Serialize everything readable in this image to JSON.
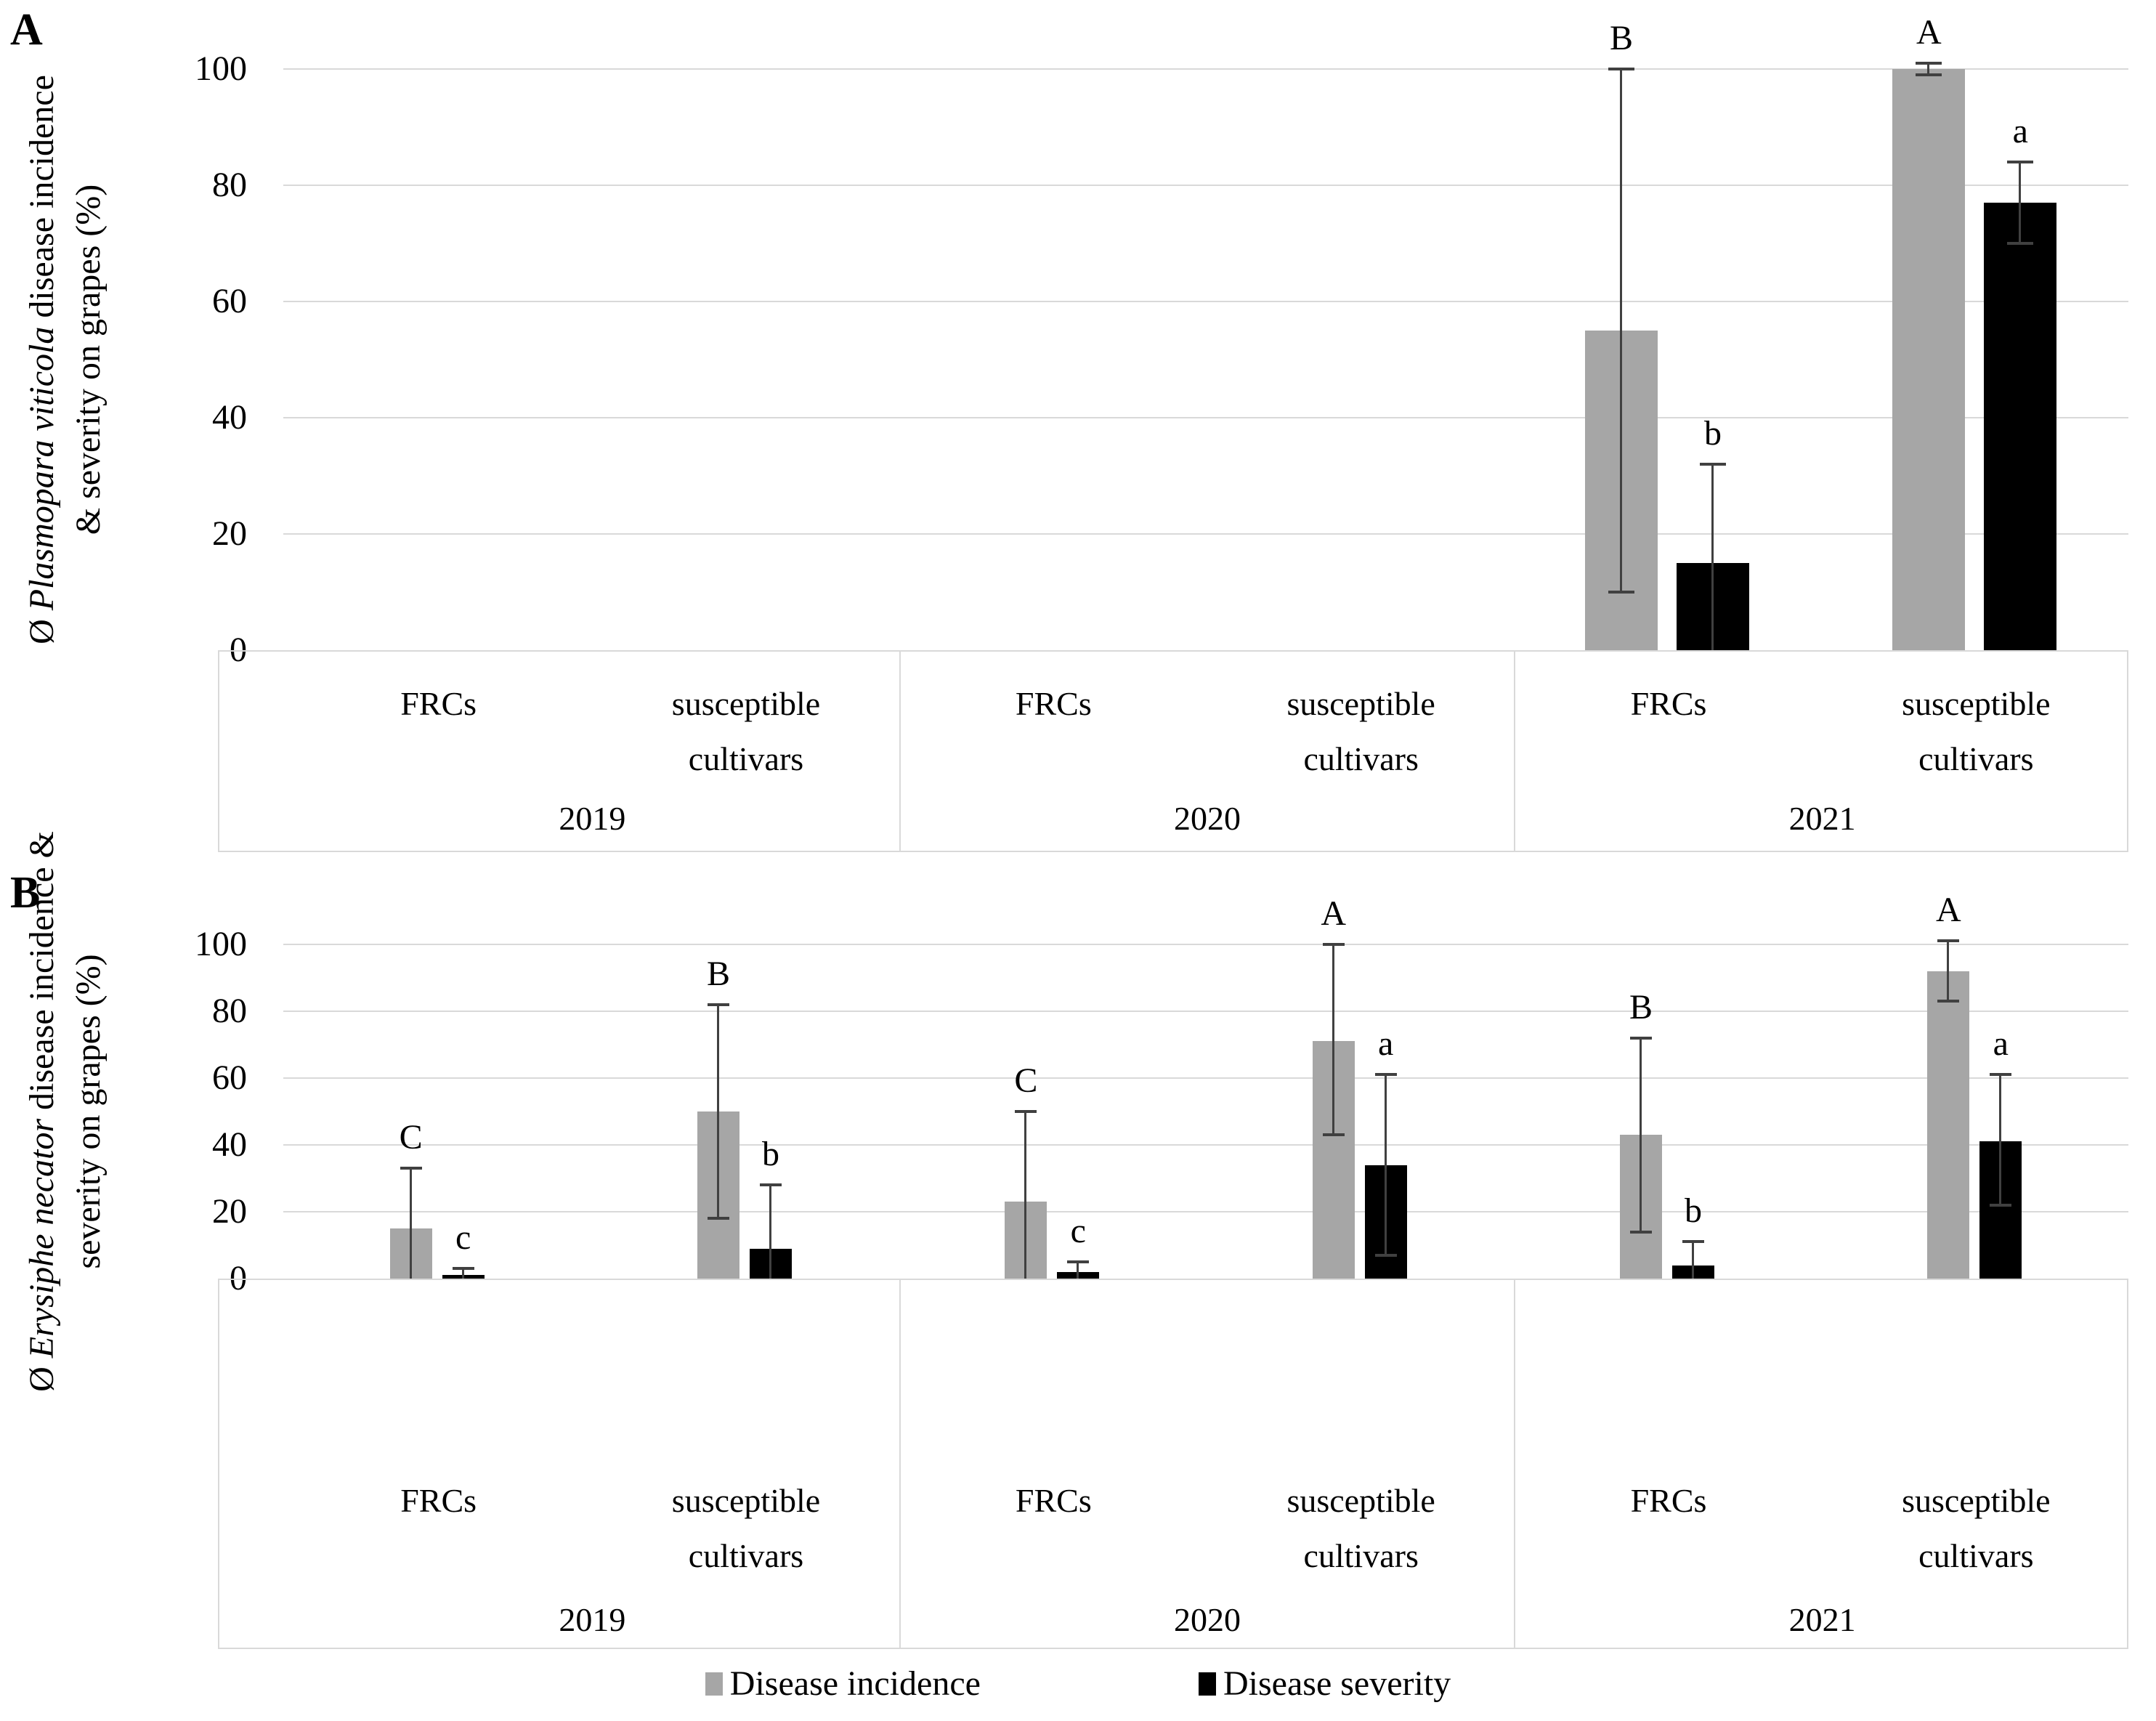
{
  "figure": {
    "panel_a_letter": "A",
    "panel_b_letter": "B",
    "colors": {
      "incidence": "#a6a6a6",
      "severity": "#000000",
      "gridline": "#d9d9d9",
      "error_bar": "#404040",
      "background": "#ffffff"
    },
    "legend": [
      {
        "series": "incidence",
        "label": "Disease incidence",
        "color": "#a6a6a6"
      },
      {
        "series": "severity",
        "label": "Disease severity",
        "color": "#000000"
      }
    ]
  },
  "chart_data": [
    {
      "panel": "A",
      "type": "bar",
      "title": "",
      "ylabel_lines": [
        {
          "pre": "Ø ",
          "italic": "Plasmopara viticola",
          "post": " disease incidence"
        },
        {
          "pre": "",
          "italic": "",
          "post": "& severity on grapes (%)"
        }
      ],
      "ylim": [
        0,
        100
      ],
      "yticks": [
        0,
        20,
        40,
        60,
        80,
        100
      ],
      "grid": true,
      "legend_position": "bottom",
      "group_years": [
        "2019",
        "2020",
        "2021"
      ],
      "cultivar_labels": [
        "FRCs",
        "susceptible\ncultivars"
      ],
      "series_names": [
        "Disease incidence",
        "Disease severity"
      ],
      "groups": [
        {
          "year": "2019",
          "clusters": [
            {
              "cultivar": "FRCs",
              "bars": [
                {
                  "series": "incidence",
                  "value": 0,
                  "err_lo": null,
                  "err_hi": null,
                  "letter": ""
                },
                {
                  "series": "severity",
                  "value": 0,
                  "err_lo": null,
                  "err_hi": null,
                  "letter": ""
                }
              ]
            },
            {
              "cultivar": "susceptible\ncultivars",
              "bars": [
                {
                  "series": "incidence",
                  "value": 0,
                  "err_lo": null,
                  "err_hi": null,
                  "letter": ""
                },
                {
                  "series": "severity",
                  "value": 0,
                  "err_lo": null,
                  "err_hi": null,
                  "letter": ""
                }
              ]
            }
          ]
        },
        {
          "year": "2020",
          "clusters": [
            {
              "cultivar": "FRCs",
              "bars": [
                {
                  "series": "incidence",
                  "value": 0,
                  "err_lo": null,
                  "err_hi": null,
                  "letter": ""
                },
                {
                  "series": "severity",
                  "value": 0,
                  "err_lo": null,
                  "err_hi": null,
                  "letter": ""
                }
              ]
            },
            {
              "cultivar": "susceptible\ncultivars",
              "bars": [
                {
                  "series": "incidence",
                  "value": 0,
                  "err_lo": null,
                  "err_hi": null,
                  "letter": ""
                },
                {
                  "series": "severity",
                  "value": 0,
                  "err_lo": null,
                  "err_hi": null,
                  "letter": ""
                }
              ]
            }
          ]
        },
        {
          "year": "2021",
          "clusters": [
            {
              "cultivar": "FRCs",
              "bars": [
                {
                  "series": "incidence",
                  "value": 55,
                  "err_lo": 10,
                  "err_hi": 100,
                  "letter": "B"
                },
                {
                  "series": "severity",
                  "value": 15,
                  "err_lo": 0,
                  "err_hi": 32,
                  "letter": "b"
                }
              ]
            },
            {
              "cultivar": "susceptible\ncultivars",
              "bars": [
                {
                  "series": "incidence",
                  "value": 100,
                  "err_lo": 99,
                  "err_hi": 101,
                  "letter": "A"
                },
                {
                  "series": "severity",
                  "value": 77,
                  "err_lo": 70,
                  "err_hi": 84,
                  "letter": "a"
                }
              ]
            }
          ]
        }
      ]
    },
    {
      "panel": "B",
      "type": "bar",
      "title": "",
      "ylabel_lines": [
        {
          "pre": "Ø ",
          "italic": "Erysiphe necator",
          "post": " disease incidence &"
        },
        {
          "pre": "",
          "italic": "",
          "post": "severity on grapes (%)"
        }
      ],
      "ylim": [
        0,
        100
      ],
      "yticks": [
        0,
        20,
        40,
        60,
        80,
        100
      ],
      "grid": true,
      "legend_position": "bottom",
      "group_years": [
        "2019",
        "2020",
        "2021"
      ],
      "cultivar_labels": [
        "FRCs",
        "susceptible\ncultivars"
      ],
      "series_names": [
        "Disease incidence",
        "Disease severity"
      ],
      "groups": [
        {
          "year": "2019",
          "clusters": [
            {
              "cultivar": "FRCs",
              "bars": [
                {
                  "series": "incidence",
                  "value": 15,
                  "err_lo": 0,
                  "err_hi": 33,
                  "letter": "C"
                },
                {
                  "series": "severity",
                  "value": 1,
                  "err_lo": 0,
                  "err_hi": 3,
                  "letter": "c"
                }
              ]
            },
            {
              "cultivar": "susceptible\ncultivars",
              "bars": [
                {
                  "series": "incidence",
                  "value": 50,
                  "err_lo": 18,
                  "err_hi": 82,
                  "letter": "B"
                },
                {
                  "series": "severity",
                  "value": 9,
                  "err_lo": 0,
                  "err_hi": 28,
                  "letter": "b"
                }
              ]
            }
          ]
        },
        {
          "year": "2020",
          "clusters": [
            {
              "cultivar": "FRCs",
              "bars": [
                {
                  "series": "incidence",
                  "value": 23,
                  "err_lo": 0,
                  "err_hi": 50,
                  "letter": "C"
                },
                {
                  "series": "severity",
                  "value": 2,
                  "err_lo": 0,
                  "err_hi": 5,
                  "letter": "c"
                }
              ]
            },
            {
              "cultivar": "susceptible\ncultivars",
              "bars": [
                {
                  "series": "incidence",
                  "value": 71,
                  "err_lo": 43,
                  "err_hi": 100,
                  "letter": "A"
                },
                {
                  "series": "severity",
                  "value": 34,
                  "err_lo": 7,
                  "err_hi": 61,
                  "letter": "a"
                }
              ]
            }
          ]
        },
        {
          "year": "2021",
          "clusters": [
            {
              "cultivar": "FRCs",
              "bars": [
                {
                  "series": "incidence",
                  "value": 43,
                  "err_lo": 14,
                  "err_hi": 72,
                  "letter": "B"
                },
                {
                  "series": "severity",
                  "value": 4,
                  "err_lo": 0,
                  "err_hi": 11,
                  "letter": "b"
                }
              ]
            },
            {
              "cultivar": "susceptible\ncultivars",
              "bars": [
                {
                  "series": "incidence",
                  "value": 92,
                  "err_lo": 83,
                  "err_hi": 101,
                  "letter": "A"
                },
                {
                  "series": "severity",
                  "value": 41,
                  "err_lo": 22,
                  "err_hi": 61,
                  "letter": "a"
                }
              ]
            }
          ]
        }
      ]
    }
  ]
}
